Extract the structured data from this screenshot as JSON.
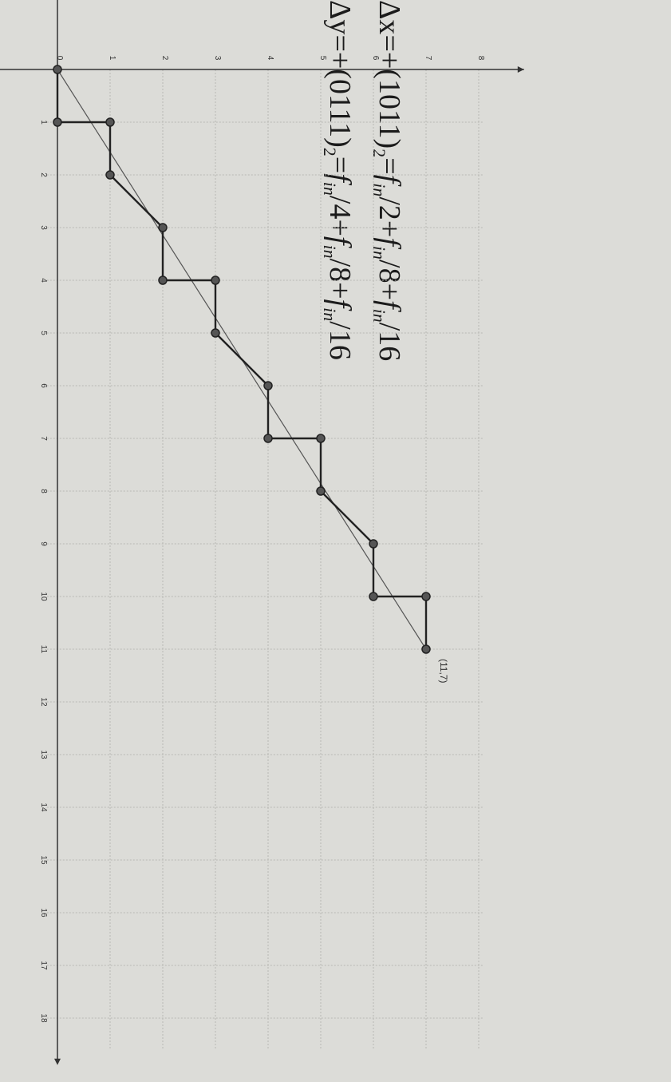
{
  "equations": [
    {
      "lhs": "Δx",
      "parts": [
        "=+(1011)",
        "2",
        "=",
        "f",
        "in",
        "/2+",
        "f",
        "in",
        "/8+",
        "f",
        "in",
        "/16"
      ]
    },
    {
      "lhs": "Δy",
      "parts": [
        "=+(0111)",
        "2",
        "=",
        "f",
        "in",
        "/4+",
        "f",
        "in",
        "/8+",
        "f",
        "in",
        "/16"
      ]
    }
  ],
  "chart_data": {
    "type": "line",
    "x_ticks": [
      "0",
      "1",
      "2",
      "3",
      "4",
      "5",
      "6",
      "7",
      "8",
      "9",
      "10",
      "11",
      "12",
      "13",
      "14",
      "15",
      "16",
      "17",
      "18"
    ],
    "y_ticks": [
      "0",
      "1",
      "2",
      "3",
      "4",
      "5",
      "6",
      "7",
      "8"
    ],
    "xlim": [
      0,
      18.8
    ],
    "ylim": [
      -0.3,
      8.3
    ],
    "grid": true,
    "series": [
      {
        "style": "staircase",
        "points": [
          [
            0,
            0
          ],
          [
            1,
            0
          ],
          [
            1,
            1
          ],
          [
            2,
            1
          ],
          [
            3,
            2
          ],
          [
            4,
            2
          ],
          [
            4,
            3
          ],
          [
            5,
            3
          ],
          [
            6,
            4
          ],
          [
            7,
            4
          ],
          [
            7,
            5
          ],
          [
            8,
            5
          ],
          [
            9,
            6
          ],
          [
            10,
            6
          ],
          [
            10,
            7
          ],
          [
            11,
            7
          ]
        ]
      },
      {
        "style": "ideal",
        "points": [
          [
            0,
            0
          ],
          [
            11,
            7
          ]
        ]
      }
    ],
    "annotations": [
      {
        "text": "(11,7)",
        "x": 11,
        "y": 7
      }
    ]
  }
}
